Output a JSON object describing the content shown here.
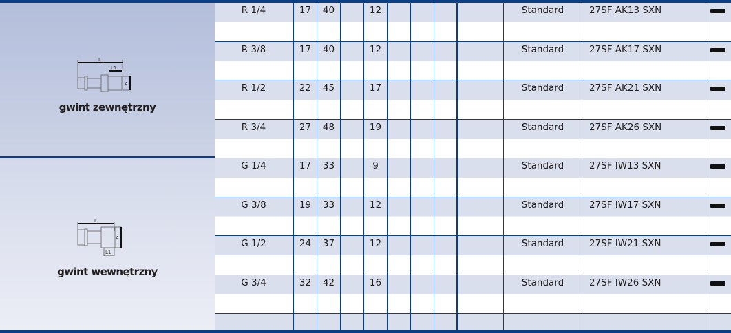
{
  "sections": [
    {
      "label": "gwint zewnętrzny",
      "drawing_labels": {
        "L": "L",
        "L1": "L1",
        "A": "A"
      },
      "rows": [
        {
          "thread": "R 1/4",
          "c1": "17",
          "c2": "40",
          "c3": "",
          "c4": "12",
          "type": "Standard",
          "code": "27SF AK13 SXN",
          "icon": "black-bar"
        },
        {
          "thread": "R 3/8",
          "c1": "17",
          "c2": "40",
          "c3": "",
          "c4": "12",
          "type": "Standard",
          "code": "27SF AK17 SXN",
          "icon": "black-bar"
        },
        {
          "thread": "R 1/2",
          "c1": "22",
          "c2": "45",
          "c3": "",
          "c4": "17",
          "type": "Standard",
          "code": "27SF AK21 SXN",
          "icon": "black-bar"
        },
        {
          "thread": "R 3/4",
          "c1": "27",
          "c2": "48",
          "c3": "",
          "c4": "19",
          "type": "Standard",
          "code": "27SF AK26 SXN",
          "icon": "black-bar"
        }
      ]
    },
    {
      "label": "gwint wewnętrzny",
      "drawing_labels": {
        "L": "L",
        "L1": "L1",
        "A": "A"
      },
      "rows": [
        {
          "thread": "G 1/4",
          "c1": "17",
          "c2": "33",
          "c3": "",
          "c4": "9",
          "type": "Standard",
          "code": "27SF IW13 SXN",
          "icon": "black-bar"
        },
        {
          "thread": "G 3/8",
          "c1": "19",
          "c2": "33",
          "c3": "",
          "c4": "12",
          "type": "Standard",
          "code": "27SF IW17 SXN",
          "icon": "black-bar"
        },
        {
          "thread": "G 1/2",
          "c1": "24",
          "c2": "37",
          "c3": "",
          "c4": "12",
          "type": "Standard",
          "code": "27SF IW21 SXN",
          "icon": "black-bar"
        },
        {
          "thread": "G 3/4",
          "c1": "32",
          "c2": "42",
          "c3": "",
          "c4": "16",
          "type": "Standard",
          "code": "27SF IW26 SXN",
          "icon": "black-bar"
        }
      ]
    }
  ],
  "colors": {
    "line": "#0a3f85",
    "row_shade": "#d9dfec",
    "panel_top": "#b3bedb",
    "panel_bottom": "#eceef6"
  }
}
